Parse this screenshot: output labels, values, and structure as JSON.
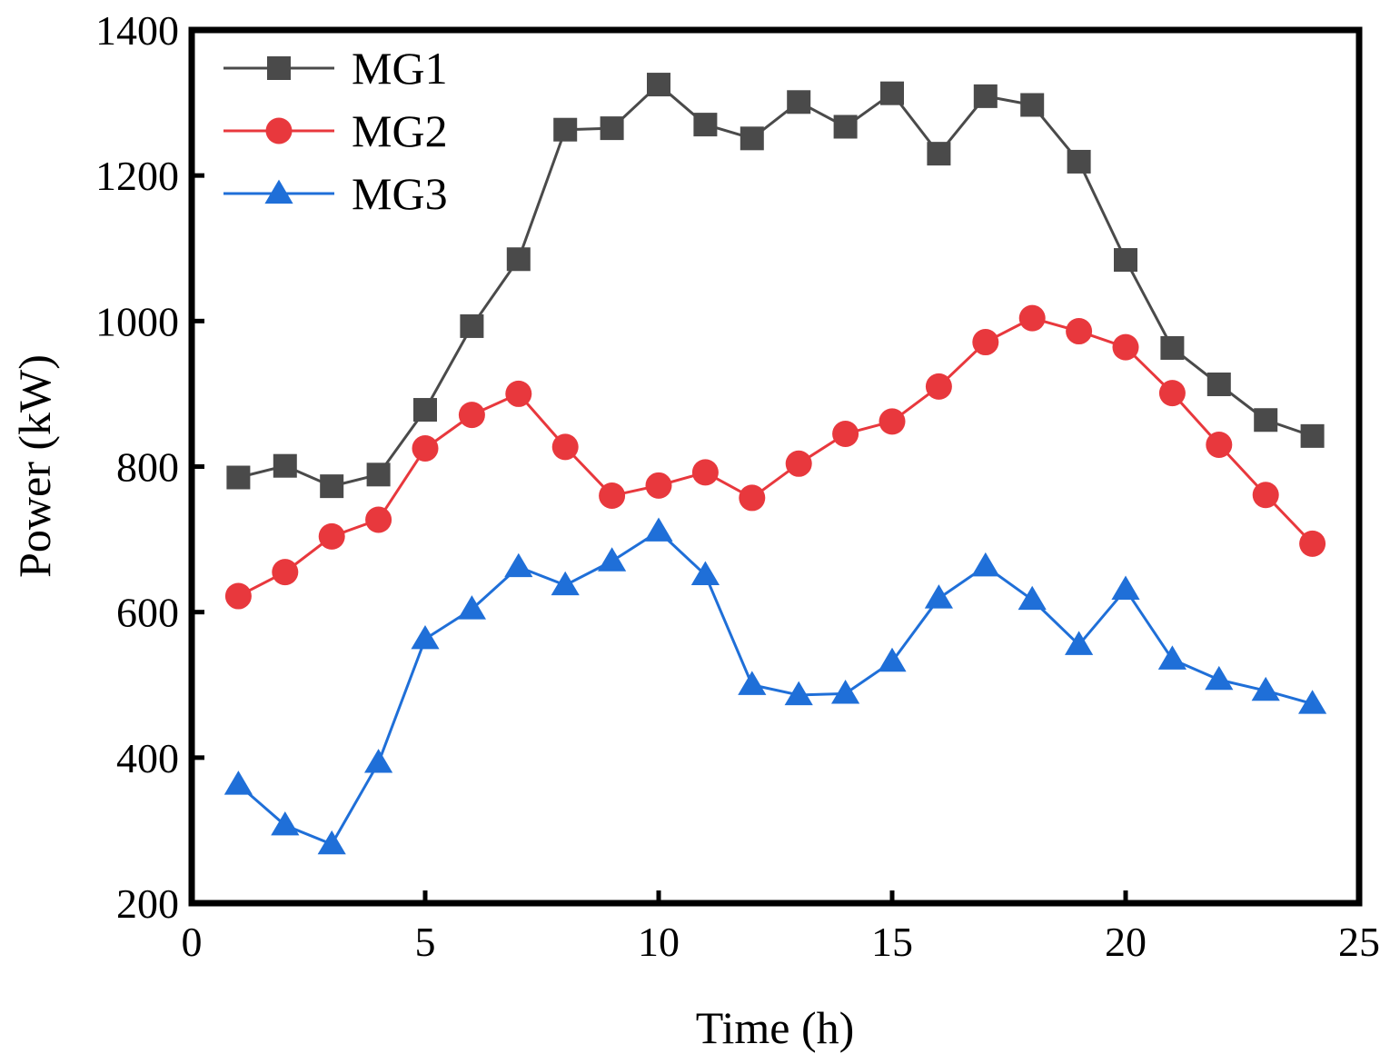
{
  "chart_data": {
    "type": "line",
    "title": "",
    "xlabel": "Time (h)",
    "ylabel": "Power (kW)",
    "xlim": [
      0,
      25
    ],
    "ylim": [
      200,
      1400
    ],
    "xticks": [
      0,
      5,
      10,
      15,
      20,
      25
    ],
    "yticks": [
      200,
      400,
      600,
      800,
      1000,
      1200,
      1400
    ],
    "x_tick_labels": [
      "0",
      "5",
      "10",
      "15",
      "20",
      "25"
    ],
    "y_tick_labels": [
      "200",
      "400",
      "600",
      "800",
      "1000",
      "1200",
      "1400"
    ],
    "grid": false,
    "legend_position": "top-left",
    "x": [
      1,
      2,
      3,
      4,
      5,
      6,
      7,
      8,
      9,
      10,
      11,
      12,
      13,
      14,
      15,
      16,
      17,
      18,
      19,
      20,
      21,
      22,
      23,
      24
    ],
    "series": [
      {
        "name": "MG1",
        "marker": "square",
        "color": "#4a4a4a",
        "values": [
          785,
          801,
          773,
          789,
          878,
          993,
          1085,
          1263,
          1265,
          1325,
          1270,
          1251,
          1301,
          1267,
          1313,
          1230,
          1309,
          1297,
          1219,
          1084,
          963,
          913,
          864,
          842
        ]
      },
      {
        "name": "MG2",
        "marker": "circle",
        "color": "#e8383d",
        "values": [
          622,
          655,
          704,
          727,
          825,
          871,
          900,
          827,
          760,
          774,
          792,
          757,
          804,
          845,
          862,
          910,
          971,
          1004,
          986,
          964,
          901,
          830,
          761,
          694
        ]
      },
      {
        "name": "MG3",
        "marker": "triangle",
        "color": "#1f6fd8",
        "values": [
          363,
          307,
          281,
          393,
          563,
          604,
          662,
          637,
          670,
          711,
          651,
          500,
          486,
          488,
          532,
          619,
          663,
          617,
          555,
          631,
          535,
          507,
          492,
          474
        ]
      }
    ]
  }
}
